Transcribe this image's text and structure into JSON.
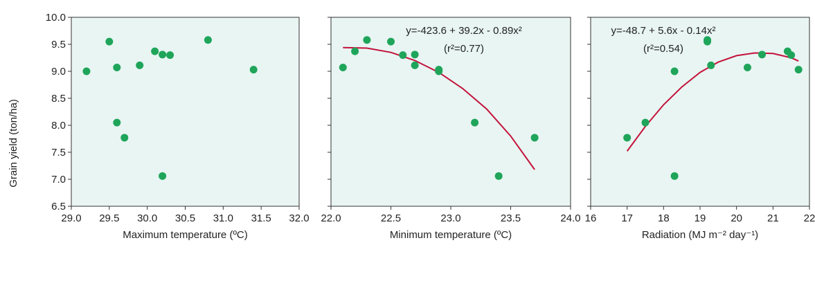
{
  "colors": {
    "panel_bg": "#e8f5f3",
    "point": "#1fa55a",
    "curve": "#c4123a",
    "axis": "#333333"
  },
  "ylabel": "Grain yield (ton/ha)",
  "chart_data": [
    {
      "type": "scatter",
      "xlabel": "Maximum temperature (ºC)",
      "xlim": [
        29.0,
        32.0
      ],
      "ylim": [
        6.5,
        10.0
      ],
      "xticks": [
        "29.0",
        "29.5",
        "30.0",
        "30.5",
        "31.0",
        "31.5",
        "32.0"
      ],
      "yticks": [
        "6.5",
        "7.0",
        "7.5",
        "8.0",
        "8.5",
        "9.0",
        "9.5",
        "10.0"
      ],
      "grid": false,
      "points": [
        [
          29.2,
          9.0
        ],
        [
          29.5,
          9.55
        ],
        [
          29.6,
          9.07
        ],
        [
          29.6,
          8.05
        ],
        [
          29.7,
          7.77
        ],
        [
          29.9,
          9.11
        ],
        [
          30.1,
          9.37
        ],
        [
          30.2,
          9.31
        ],
        [
          30.2,
          7.06
        ],
        [
          30.3,
          9.3
        ],
        [
          30.8,
          9.58
        ],
        [
          31.4,
          9.03
        ]
      ]
    },
    {
      "type": "scatter",
      "xlabel": "Minimum temperature (ºC)",
      "xlim": [
        22.0,
        24.0
      ],
      "ylim": [
        6.5,
        10.0
      ],
      "xticks": [
        "22.0",
        "22.5",
        "23.0",
        "23.5",
        "24.0"
      ],
      "grid": false,
      "equation": "y=-423.6 + 39.2x - 0.89x²",
      "r2": "(r²=0.77)",
      "curve": {
        "x_range": [
          22.1,
          23.7
        ],
        "points": [
          [
            22.1,
            9.44
          ],
          [
            22.3,
            9.43
          ],
          [
            22.5,
            9.35
          ],
          [
            22.7,
            9.2
          ],
          [
            22.9,
            8.98
          ],
          [
            23.1,
            8.68
          ],
          [
            23.3,
            8.3
          ],
          [
            23.5,
            7.8
          ],
          [
            23.7,
            7.18
          ]
        ]
      },
      "points": [
        [
          22.1,
          9.07
        ],
        [
          22.2,
          9.37
        ],
        [
          22.3,
          9.58
        ],
        [
          22.5,
          9.55
        ],
        [
          22.6,
          9.3
        ],
        [
          22.7,
          9.31
        ],
        [
          22.7,
          9.11
        ],
        [
          22.9,
          9.03
        ],
        [
          22.9,
          9.0
        ],
        [
          23.2,
          8.05
        ],
        [
          23.4,
          7.06
        ],
        [
          23.7,
          7.77
        ]
      ]
    },
    {
      "type": "scatter",
      "xlabel": "Radiation (MJ m⁻² day⁻¹)",
      "xlim": [
        16,
        22
      ],
      "ylim": [
        6.5,
        10.0
      ],
      "xticks": [
        "16",
        "17",
        "18",
        "19",
        "20",
        "21",
        "22"
      ],
      "grid": false,
      "equation": "y=-48.7 + 5.6x - 0.14x²",
      "r2": "(r²=0.54)",
      "curve": {
        "x_range": [
          17.0,
          21.7
        ],
        "points": [
          [
            17.0,
            7.52
          ],
          [
            17.5,
            7.98
          ],
          [
            18.0,
            8.38
          ],
          [
            18.5,
            8.71
          ],
          [
            19.0,
            8.98
          ],
          [
            19.5,
            9.17
          ],
          [
            20.0,
            9.29
          ],
          [
            20.5,
            9.34
          ],
          [
            21.0,
            9.33
          ],
          [
            21.5,
            9.25
          ],
          [
            21.7,
            9.19
          ]
        ]
      },
      "points": [
        [
          17.0,
          7.77
        ],
        [
          17.5,
          8.05
        ],
        [
          18.3,
          9.0
        ],
        [
          18.3,
          7.06
        ],
        [
          19.2,
          9.58
        ],
        [
          19.2,
          9.55
        ],
        [
          19.3,
          9.11
        ],
        [
          20.3,
          9.07
        ],
        [
          20.7,
          9.31
        ],
        [
          21.4,
          9.37
        ],
        [
          21.5,
          9.3
        ],
        [
          21.7,
          9.03
        ]
      ]
    }
  ]
}
